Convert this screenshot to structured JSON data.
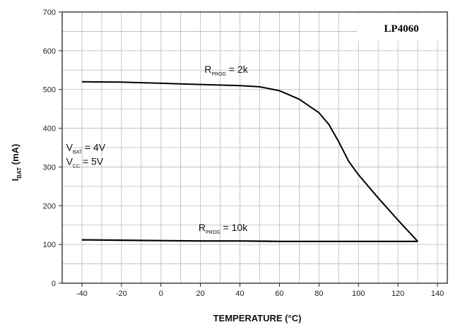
{
  "chart_data": {
    "type": "line",
    "title": "LP4060",
    "xlabel": "TEMPERATURE (°C)",
    "ylabel": "IBAT (mA)",
    "ylabel_main": "I",
    "ylabel_sub": "BAT",
    "ylabel_unit": "(mA)",
    "xlim": [
      -50,
      145
    ],
    "ylim": [
      0,
      700
    ],
    "x_ticks": [
      -40,
      -20,
      0,
      20,
      40,
      60,
      80,
      100,
      120,
      140
    ],
    "y_ticks": [
      0,
      100,
      200,
      300,
      400,
      500,
      600,
      700
    ],
    "x_tick_labels": [
      "-40",
      "-20",
      "0",
      "20",
      "40",
      "60",
      "80",
      "100",
      "120",
      "140"
    ],
    "y_tick_labels": [
      "0",
      "100",
      "200",
      "300",
      "400",
      "500",
      "600",
      "700"
    ],
    "grid": true,
    "series": [
      {
        "name": "RPROG = 2k",
        "x": [
          -40,
          -20,
          0,
          20,
          40,
          50,
          60,
          70,
          80,
          85,
          90,
          95,
          100,
          110,
          120,
          130
        ],
        "y": [
          520,
          519,
          516,
          513,
          510,
          507,
          497,
          475,
          440,
          410,
          365,
          315,
          280,
          220,
          163,
          108
        ]
      },
      {
        "name": "RPROG = 10k",
        "x": [
          -40,
          -20,
          0,
          20,
          40,
          60,
          80,
          100,
          120,
          130
        ],
        "y": [
          112,
          111,
          110,
          109,
          109,
          108,
          108,
          108,
          108,
          108
        ]
      }
    ],
    "annotations": [
      {
        "main": "R",
        "sub": "PROG",
        "rest": " = 2k",
        "x": 22,
        "y": 543
      },
      {
        "main": "R",
        "sub": "PROG",
        "rest": " = 10k",
        "x": 19,
        "y": 135
      },
      {
        "main": "V",
        "sub": "BAT",
        "rest": " = 4V",
        "x": -48,
        "y": 342
      },
      {
        "main": "V",
        "sub": "CC",
        "rest": " = 5V",
        "x": -48,
        "y": 305
      }
    ]
  }
}
